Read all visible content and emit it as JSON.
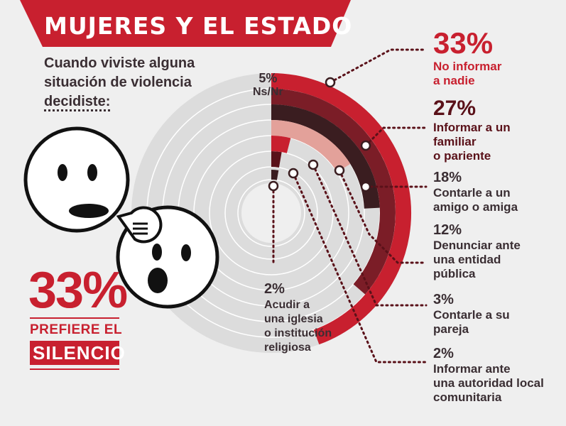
{
  "title": "MUJERES Y EL ESTADO",
  "question": {
    "line1": "Cuando viviste alguna",
    "line2": "situación de violencia",
    "line3": "decidiste:"
  },
  "summary": {
    "percent": "33%",
    "line1": "PREFIERE EL",
    "line2": "SILENCIO"
  },
  "colors": {
    "red": "#c8202f",
    "dark_red": "#5a1119",
    "maroon": "#7b1d27",
    "darkest": "#3a1d20",
    "salmon": "#e3a19a",
    "grey": "#dcdcdc"
  },
  "chart_data": {
    "type": "radial-bar",
    "max_value": 33,
    "series": [
      {
        "label": "No informar a nadie",
        "value": 33,
        "value_label": "33%",
        "color": "#c8202f"
      },
      {
        "label": "Informar a un familiar o pariente",
        "value": 27,
        "value_label": "27%",
        "color": "#7b1d27"
      },
      {
        "label": "Contarle a un amigo o amiga",
        "value": 18,
        "value_label": "18%",
        "color": "#3a1d20"
      },
      {
        "label": "Denunciar ante una entidad pública",
        "value": 12,
        "value_label": "12%",
        "color": "#e3a19a"
      },
      {
        "label": "Contarle a su pareja",
        "value": 3,
        "value_label": "3%",
        "color": "#c8202f"
      },
      {
        "label": "Informar ante una autoridad local comunitaria",
        "value": 2,
        "value_label": "2%",
        "color": "#5a1119"
      },
      {
        "label": "Acudir a una iglesia o institución religiosa",
        "value": 2,
        "value_label": "2%",
        "color": "#3a1d20"
      },
      {
        "label": "Ns/Nr",
        "value": 5,
        "value_label": "5%",
        "color": "#dcdcdc"
      }
    ]
  },
  "labels": {
    "l33": {
      "pct": "33%",
      "text": [
        "No informar",
        "a nadie"
      ]
    },
    "l27": {
      "pct": "27%",
      "text": [
        "Informar a un",
        "familiar",
        "o pariente"
      ]
    },
    "l18": {
      "pct": "18%",
      "text": [
        "Contarle a un",
        "amigo o amiga"
      ]
    },
    "l12": {
      "pct": "12%",
      "text": [
        "Denunciar ante",
        "una entidad",
        "pública"
      ]
    },
    "l3": {
      "pct": "3%",
      "text": [
        "Contarle a su",
        "pareja"
      ]
    },
    "l2a": {
      "pct": "2%",
      "text": [
        "Informar ante",
        "una autoridad local",
        "comunitaria"
      ]
    },
    "l2b": {
      "pct": "2%",
      "text": [
        "Acudir a",
        "una iglesia",
        "o institución",
        "religiosa"
      ]
    },
    "lns": {
      "pct": "5%",
      "text": [
        "Ns/Nr"
      ]
    }
  }
}
